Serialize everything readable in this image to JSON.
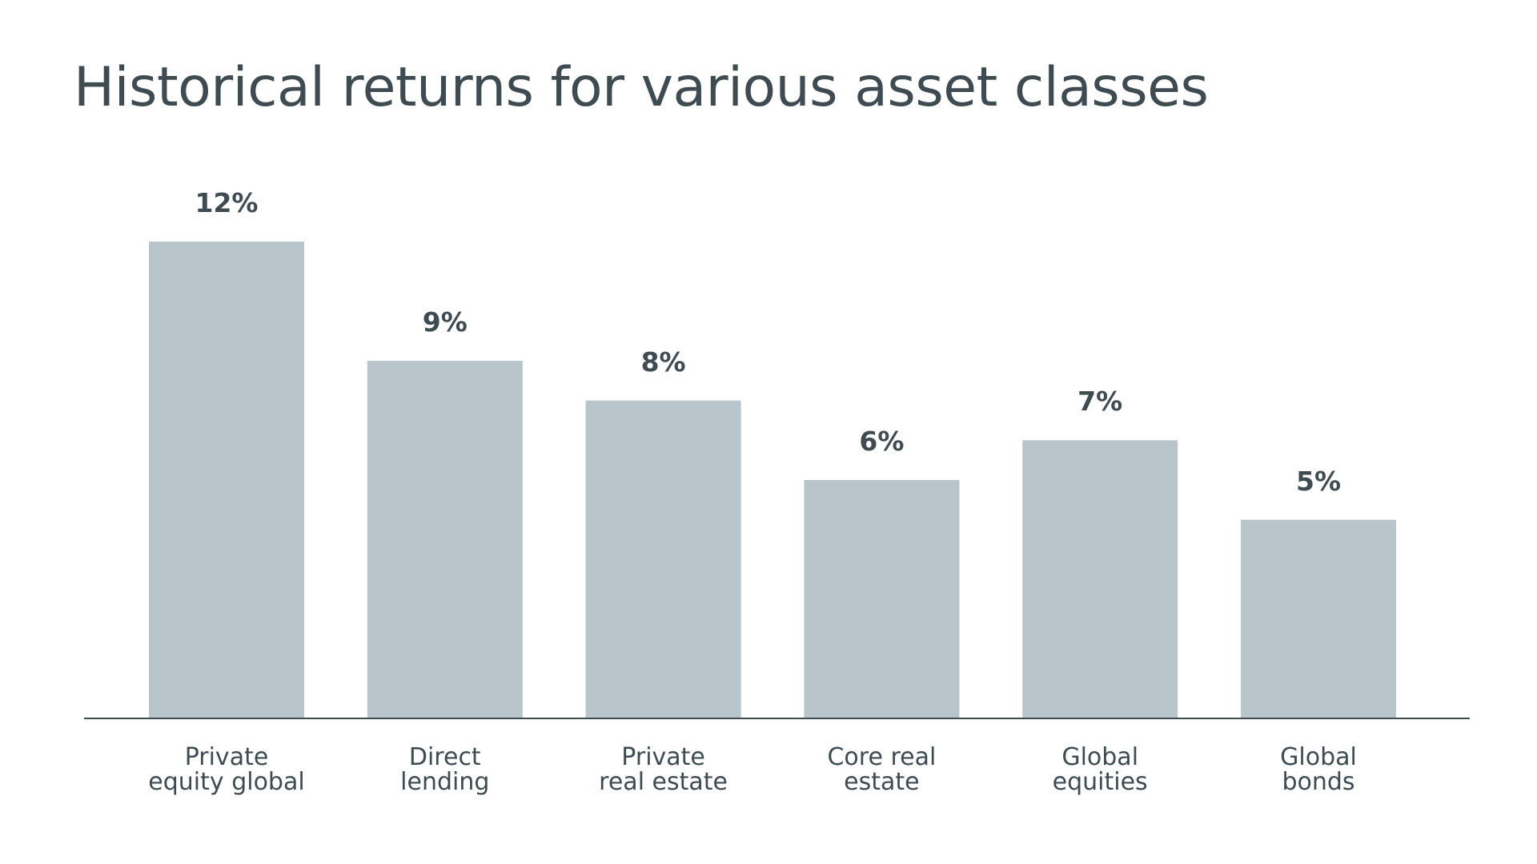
{
  "chart_data": {
    "type": "bar",
    "title": "Historical returns for various asset classes",
    "categories": [
      "Private\nequity global",
      "Direct\nlending",
      "Private\nreal estate",
      "Core real\nestate",
      "Global\nequities",
      "Global\nbonds"
    ],
    "values": [
      12,
      9,
      8,
      6,
      7,
      5
    ],
    "value_labels": [
      "12%",
      "9%",
      "8%",
      "6%",
      "7%",
      "5%"
    ],
    "color": "#b8c5cb"
  }
}
